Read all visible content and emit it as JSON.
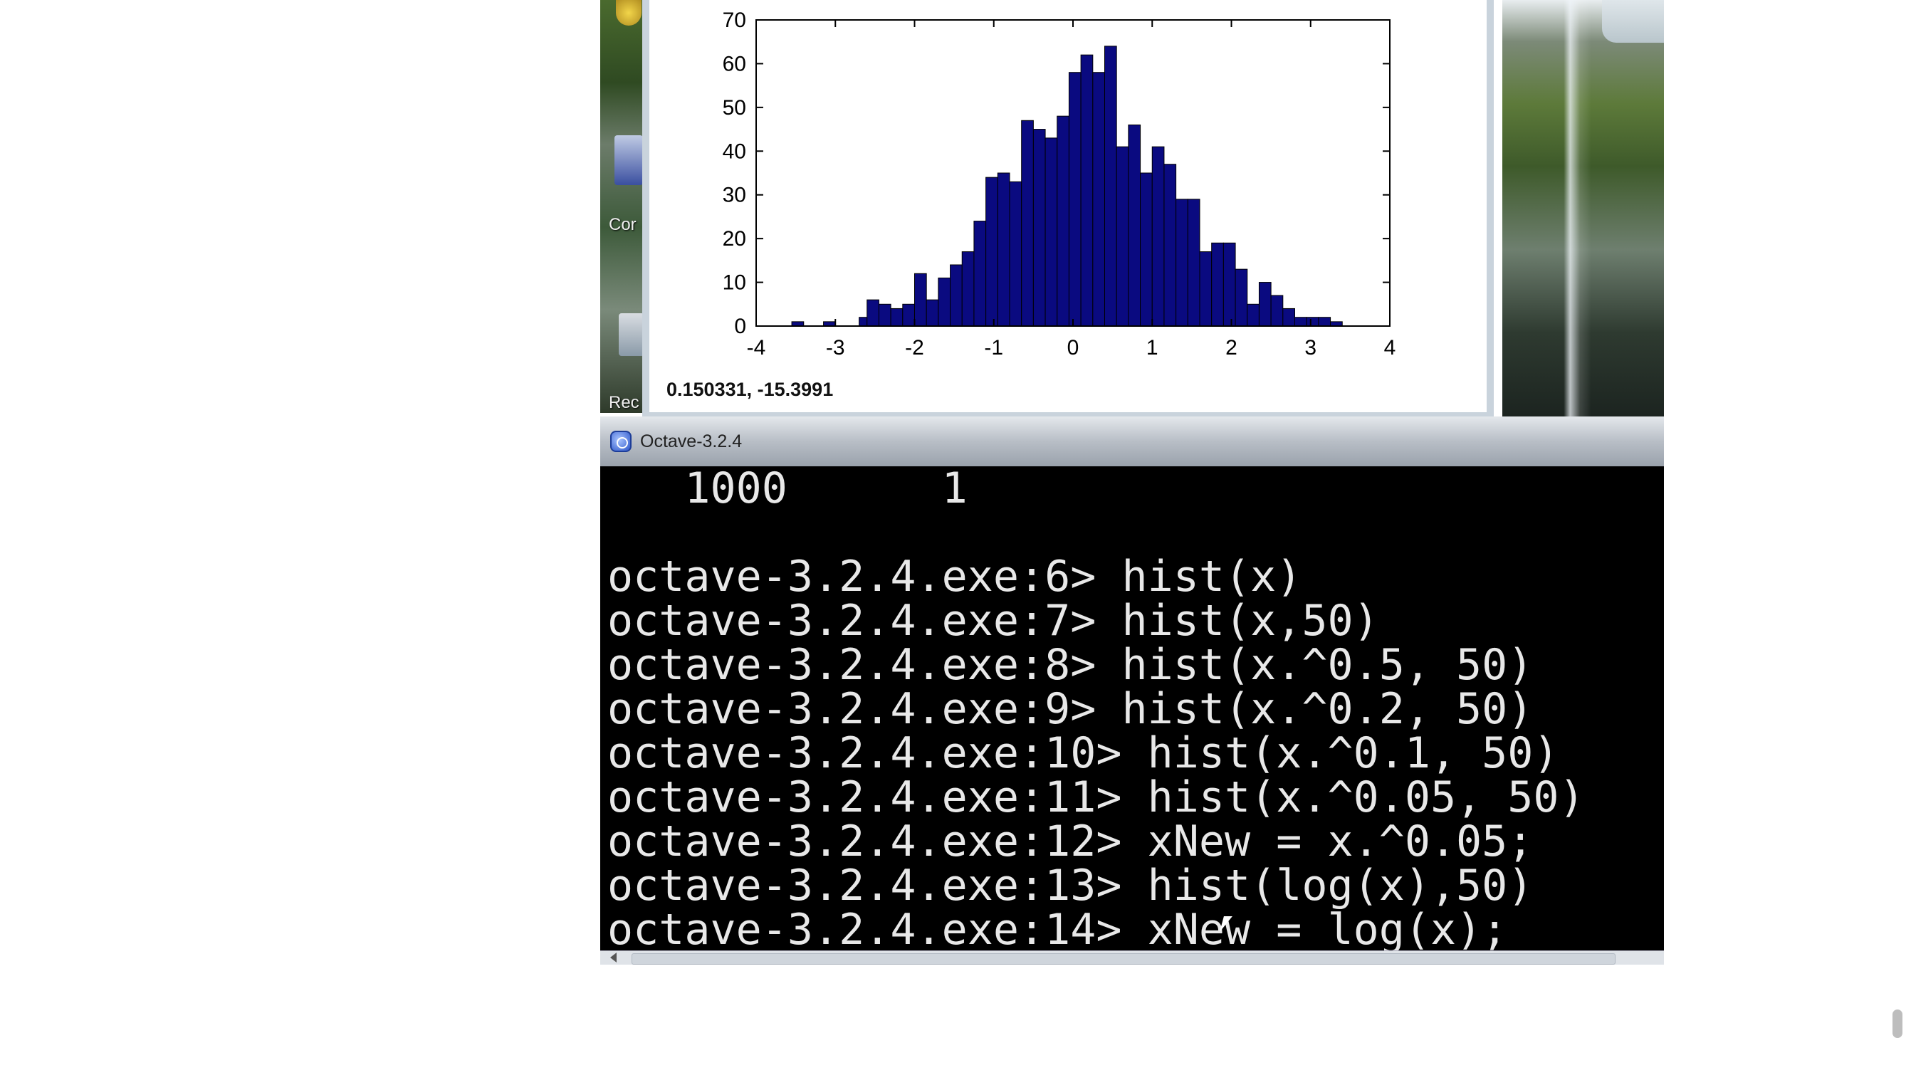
{
  "desktop": {
    "left_labels": [
      "Cor",
      "Rec"
    ]
  },
  "figure_window": {
    "coordinate_readout": "0.150331, -15.3991",
    "chart_data": {
      "type": "bar",
      "title": "",
      "xlabel": "",
      "ylabel": "",
      "xlim": [
        -4,
        4
      ],
      "ylim": [
        0,
        70
      ],
      "x_ticks": [
        -4,
        -3,
        -2,
        -1,
        0,
        1,
        2,
        3,
        4
      ],
      "y_ticks": [
        0,
        10,
        20,
        30,
        40,
        50,
        60,
        70
      ],
      "grid": false,
      "bar_color": "#0a0a80",
      "bins": [
        {
          "x0": -3.55,
          "x1": -3.4,
          "v": 1
        },
        {
          "x0": -3.15,
          "x1": -3.0,
          "v": 1
        },
        {
          "x0": -2.7,
          "x1": -2.6,
          "v": 2
        },
        {
          "x0": -2.6,
          "x1": -2.45,
          "v": 6
        },
        {
          "x0": -2.45,
          "x1": -2.3,
          "v": 5
        },
        {
          "x0": -2.3,
          "x1": -2.15,
          "v": 4
        },
        {
          "x0": -2.15,
          "x1": -2.0,
          "v": 5
        },
        {
          "x0": -2.0,
          "x1": -1.85,
          "v": 12
        },
        {
          "x0": -1.85,
          "x1": -1.7,
          "v": 6
        },
        {
          "x0": -1.7,
          "x1": -1.55,
          "v": 11
        },
        {
          "x0": -1.55,
          "x1": -1.4,
          "v": 14
        },
        {
          "x0": -1.4,
          "x1": -1.25,
          "v": 17
        },
        {
          "x0": -1.25,
          "x1": -1.1,
          "v": 24
        },
        {
          "x0": -1.1,
          "x1": -0.95,
          "v": 34
        },
        {
          "x0": -0.95,
          "x1": -0.8,
          "v": 35
        },
        {
          "x0": -0.8,
          "x1": -0.65,
          "v": 33
        },
        {
          "x0": -0.65,
          "x1": -0.5,
          "v": 47
        },
        {
          "x0": -0.5,
          "x1": -0.35,
          "v": 45
        },
        {
          "x0": -0.35,
          "x1": -0.2,
          "v": 43
        },
        {
          "x0": -0.2,
          "x1": -0.05,
          "v": 48
        },
        {
          "x0": -0.05,
          "x1": 0.1,
          "v": 58
        },
        {
          "x0": 0.1,
          "x1": 0.25,
          "v": 62
        },
        {
          "x0": 0.25,
          "x1": 0.4,
          "v": 58
        },
        {
          "x0": 0.4,
          "x1": 0.55,
          "v": 64
        },
        {
          "x0": 0.55,
          "x1": 0.7,
          "v": 41
        },
        {
          "x0": 0.7,
          "x1": 0.85,
          "v": 46
        },
        {
          "x0": 0.85,
          "x1": 1.0,
          "v": 35
        },
        {
          "x0": 1.0,
          "x1": 1.15,
          "v": 41
        },
        {
          "x0": 1.15,
          "x1": 1.3,
          "v": 37
        },
        {
          "x0": 1.3,
          "x1": 1.45,
          "v": 29
        },
        {
          "x0": 1.45,
          "x1": 1.6,
          "v": 29
        },
        {
          "x0": 1.6,
          "x1": 1.75,
          "v": 17
        },
        {
          "x0": 1.75,
          "x1": 1.9,
          "v": 19
        },
        {
          "x0": 1.9,
          "x1": 2.05,
          "v": 19
        },
        {
          "x0": 2.05,
          "x1": 2.2,
          "v": 13
        },
        {
          "x0": 2.2,
          "x1": 2.35,
          "v": 5
        },
        {
          "x0": 2.35,
          "x1": 2.5,
          "v": 10
        },
        {
          "x0": 2.5,
          "x1": 2.65,
          "v": 7
        },
        {
          "x0": 2.65,
          "x1": 2.8,
          "v": 4
        },
        {
          "x0": 2.8,
          "x1": 2.95,
          "v": 2
        },
        {
          "x0": 2.95,
          "x1": 3.1,
          "v": 2
        },
        {
          "x0": 3.1,
          "x1": 3.25,
          "v": 2
        },
        {
          "x0": 3.25,
          "x1": 3.4,
          "v": 1
        }
      ]
    }
  },
  "octave_window": {
    "title": "Octave-3.2.4",
    "console_lines": [
      "   1000      1",
      "",
      "octave-3.2.4.exe:6> hist(x)",
      "octave-3.2.4.exe:7> hist(x,50)",
      "octave-3.2.4.exe:8> hist(x.^0.5, 50)",
      "octave-3.2.4.exe:9> hist(x.^0.2, 50)",
      "octave-3.2.4.exe:10> hist(x.^0.1, 50)",
      "octave-3.2.4.exe:11> hist(x.^0.05, 50)",
      "octave-3.2.4.exe:12> xNew = x.^0.05;",
      "octave-3.2.4.exe:13> hist(log(x),50)",
      "octave-3.2.4.exe:14> xNew = log(x);"
    ]
  }
}
